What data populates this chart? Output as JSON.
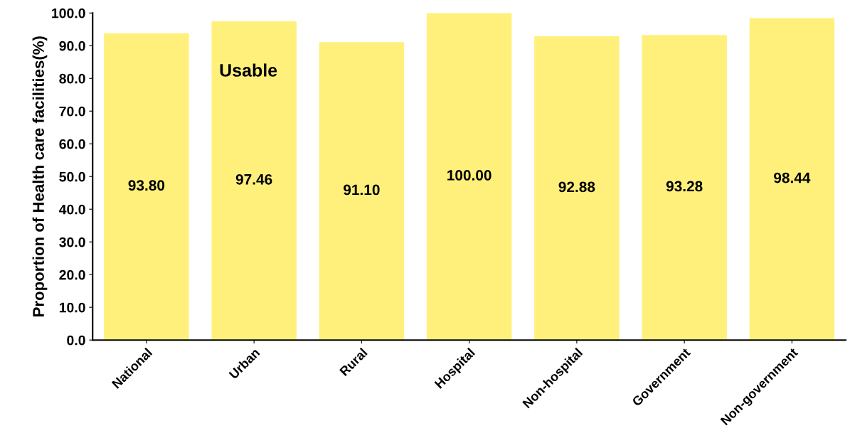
{
  "chart_data": {
    "type": "bar",
    "ylabel": "Proportion of Health care facilities(%)",
    "categories": [
      "National",
      "Urban",
      "Rural",
      "Hospital",
      "Non-hospital",
      "Government",
      "Non-government"
    ],
    "values": [
      93.8,
      97.46,
      91.1,
      100.0,
      92.88,
      93.28,
      98.44
    ],
    "value_labels": [
      "93.80",
      "97.46",
      "91.10",
      "100.00",
      "92.88",
      "93.28",
      "98.44"
    ],
    "color": "#fff07c",
    "ylim": [
      0,
      100
    ],
    "yticks": [
      {
        "value": 0,
        "label": "0.0"
      },
      {
        "value": 10,
        "label": "10.0"
      },
      {
        "value": 20,
        "label": "20.0"
      },
      {
        "value": 30,
        "label": "30.0"
      },
      {
        "value": 40,
        "label": "40.0"
      },
      {
        "value": 50,
        "label": "50.0"
      },
      {
        "value": 60,
        "label": "60.0"
      },
      {
        "value": 70,
        "label": "70.0"
      },
      {
        "value": 80,
        "label": "80.0"
      },
      {
        "value": 90,
        "label": "90.0"
      },
      {
        "value": 100,
        "label": "100.0"
      }
    ],
    "annotations": [
      "Usable"
    ],
    "grid": false,
    "legend": false
  }
}
